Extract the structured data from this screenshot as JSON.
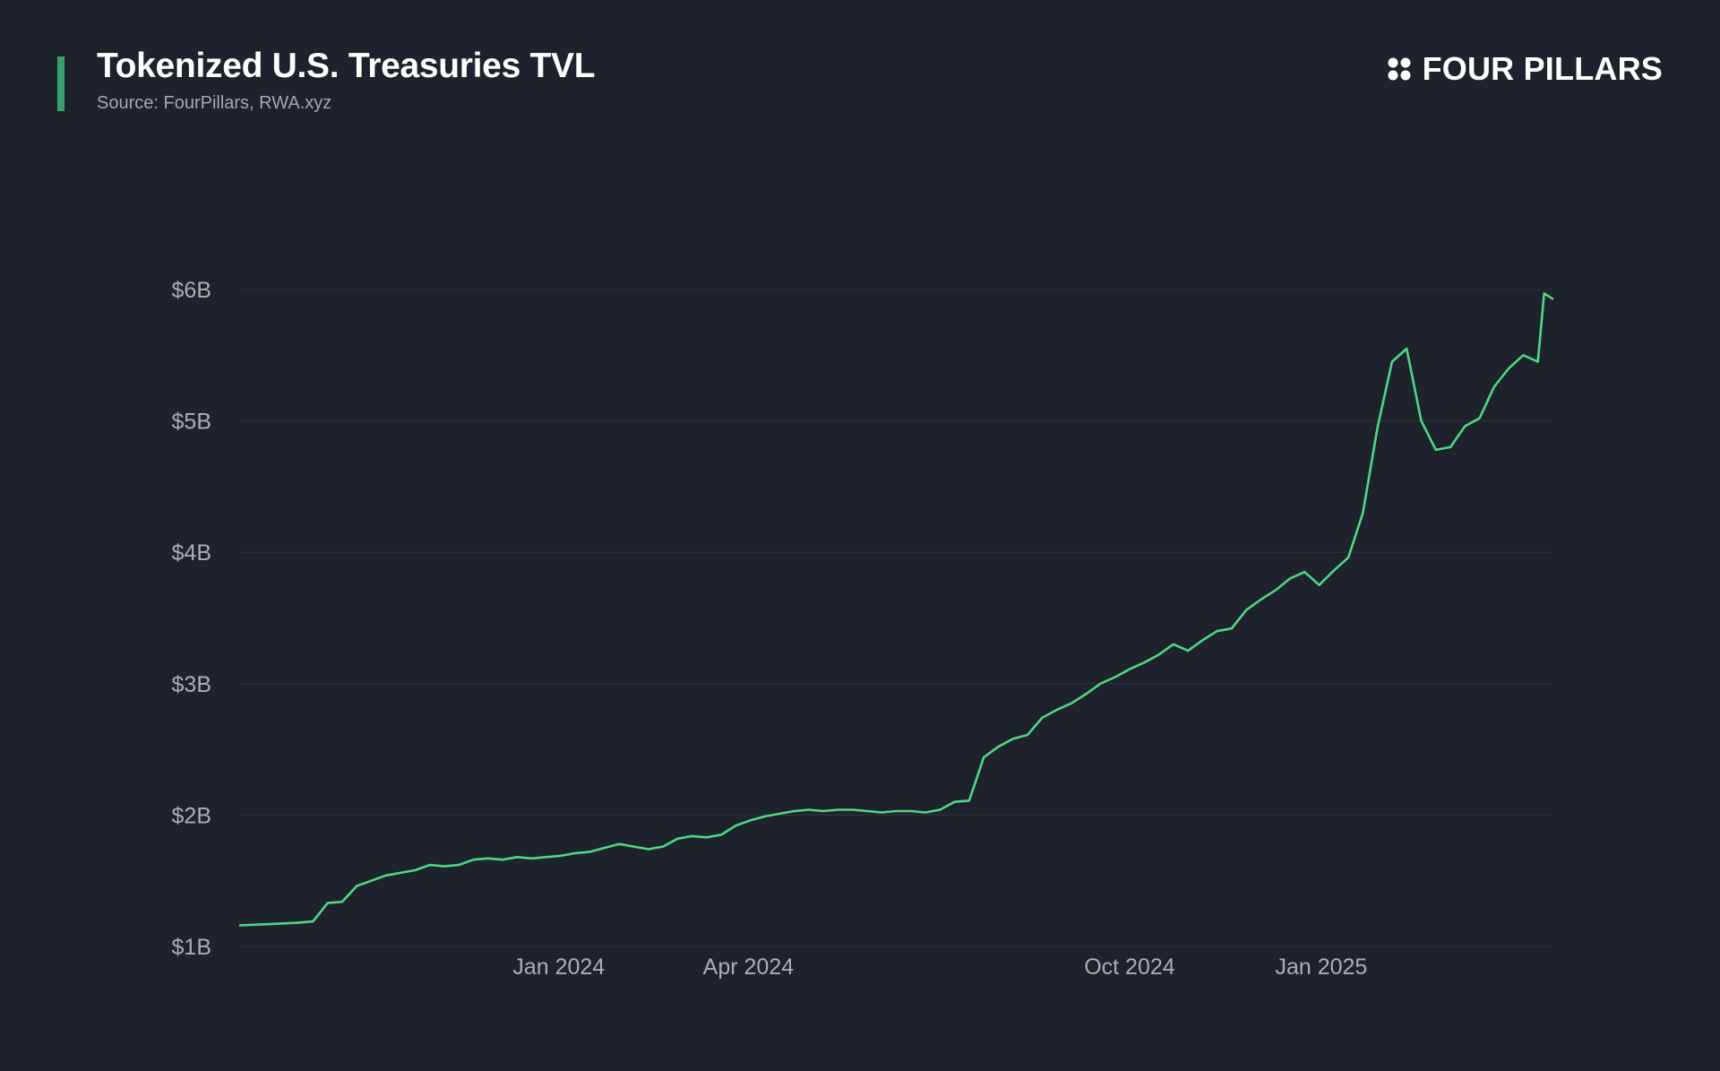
{
  "header": {
    "title": "Tokenized U.S. Treasuries TVL",
    "source": "Source: FourPillars, RWA.xyz",
    "logo_text": "FOUR PILLARS",
    "logo_icon": "four-dots-icon"
  },
  "colors": {
    "background": "#1e222c",
    "accent": "#3aa06b",
    "line": "#4fd687",
    "grid": "#2c3039",
    "tick_text": "#a9aeb8"
  },
  "chart_data": {
    "type": "line",
    "title": "Tokenized U.S. Treasuries TVL",
    "xlabel": "",
    "ylabel": "",
    "x_range": [
      "2023-08-01",
      "2025-04-22"
    ],
    "ylim": [
      1.0,
      6.0
    ],
    "y_unit": "$B",
    "grid": true,
    "legend": "none",
    "x_ticks": [
      {
        "date": "2024-01-01",
        "label": "Jan 2024"
      },
      {
        "date": "2024-04-01",
        "label": "Apr 2024"
      },
      {
        "date": "2024-10-01",
        "label": "Oct 2024"
      },
      {
        "date": "2025-01-01",
        "label": "Jan 2025"
      }
    ],
    "y_ticks": [
      {
        "value": 1,
        "label": "$1B"
      },
      {
        "value": 2,
        "label": "$2B"
      },
      {
        "value": 3,
        "label": "$3B"
      },
      {
        "value": 4,
        "label": "$4B"
      },
      {
        "value": 5,
        "label": "$5B"
      },
      {
        "value": 6,
        "label": "$6B"
      }
    ],
    "series": [
      {
        "x": [
          "2023-08-01",
          "2023-08-15",
          "2023-08-29",
          "2023-09-05",
          "2023-09-12",
          "2023-09-19",
          "2023-09-26",
          "2023-10-03",
          "2023-10-10",
          "2023-10-17",
          "2023-10-24",
          "2023-10-31",
          "2023-11-07",
          "2023-11-14",
          "2023-11-21",
          "2023-11-28",
          "2023-12-05",
          "2023-12-12",
          "2023-12-19",
          "2023-12-26",
          "2024-01-02",
          "2024-01-09",
          "2024-01-16",
          "2024-01-23",
          "2024-01-30",
          "2024-02-06",
          "2024-02-13",
          "2024-02-20",
          "2024-02-27",
          "2024-03-05",
          "2024-03-12",
          "2024-03-19",
          "2024-03-26",
          "2024-04-02",
          "2024-04-09",
          "2024-04-16",
          "2024-04-23",
          "2024-04-30",
          "2024-05-07",
          "2024-05-14",
          "2024-05-21",
          "2024-05-28",
          "2024-06-04",
          "2024-06-11",
          "2024-06-18",
          "2024-06-25",
          "2024-07-02",
          "2024-07-09",
          "2024-07-16",
          "2024-07-23",
          "2024-07-30",
          "2024-08-06",
          "2024-08-13",
          "2024-08-20",
          "2024-08-27",
          "2024-09-03",
          "2024-09-10",
          "2024-09-17",
          "2024-09-24",
          "2024-10-01",
          "2024-10-08",
          "2024-10-15",
          "2024-10-22",
          "2024-10-29",
          "2024-11-05",
          "2024-11-12",
          "2024-11-19",
          "2024-11-26",
          "2024-12-03",
          "2024-12-10",
          "2024-12-17",
          "2024-12-24",
          "2024-12-31",
          "2025-01-07",
          "2025-01-14",
          "2025-01-21",
          "2025-01-28",
          "2025-02-04",
          "2025-02-11",
          "2025-02-18",
          "2025-02-25",
          "2025-03-04",
          "2025-03-11",
          "2025-03-18",
          "2025-03-25",
          "2025-04-01",
          "2025-04-08",
          "2025-04-15",
          "2025-04-18",
          "2025-04-22"
        ],
        "y": [
          1.16,
          1.17,
          1.18,
          1.19,
          1.33,
          1.34,
          1.46,
          1.5,
          1.54,
          1.56,
          1.58,
          1.62,
          1.61,
          1.62,
          1.66,
          1.67,
          1.66,
          1.68,
          1.67,
          1.68,
          1.69,
          1.71,
          1.72,
          1.75,
          1.78,
          1.76,
          1.74,
          1.76,
          1.82,
          1.84,
          1.83,
          1.85,
          1.92,
          1.96,
          1.99,
          2.01,
          2.03,
          2.04,
          2.03,
          2.04,
          2.04,
          2.03,
          2.02,
          2.03,
          2.03,
          2.02,
          2.04,
          2.1,
          2.11,
          2.44,
          2.52,
          2.58,
          2.61,
          2.74,
          2.8,
          2.85,
          2.92,
          3.0,
          3.05,
          3.11,
          3.16,
          3.22,
          3.3,
          3.25,
          3.33,
          3.4,
          3.42,
          3.56,
          3.64,
          3.71,
          3.8,
          3.85,
          3.75,
          3.86,
          3.96,
          4.3,
          4.95,
          5.45,
          5.55,
          5.0,
          4.78,
          4.8,
          4.96,
          5.02,
          5.26,
          5.4,
          5.5,
          5.45,
          5.97,
          5.93
        ]
      }
    ]
  }
}
